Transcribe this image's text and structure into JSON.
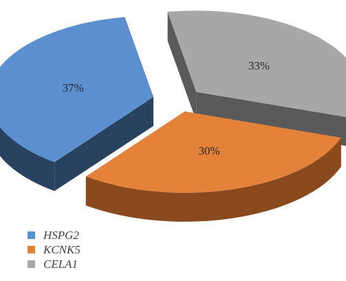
{
  "chart_data": {
    "type": "pie",
    "style": "3d-exploded",
    "title": "",
    "categories": [
      "HSPG2",
      "KCNK5",
      "CELA1"
    ],
    "values": [
      37,
      30,
      33
    ],
    "data_labels": [
      "37%",
      "30%",
      "33%"
    ],
    "colors": {
      "HSPG2": "#5b8fcf",
      "KCNK5": "#e4823a",
      "CELA1": "#a7a7a7"
    },
    "side_colors": {
      "HSPG2": "#28425f",
      "KCNK5": "#8a4a1d",
      "CELA1": "#5a5a5a"
    },
    "legend_position": "bottom-left"
  }
}
